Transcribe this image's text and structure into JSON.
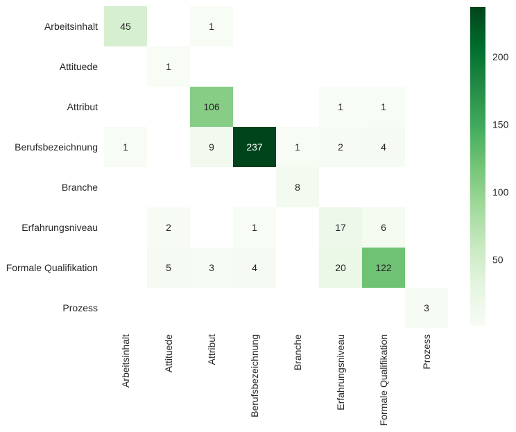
{
  "chart_data": {
    "type": "heatmap",
    "title": "",
    "xlabel": "",
    "ylabel": "",
    "row_labels": [
      "Arbeitsinhalt",
      "Attituede",
      "Attribut",
      "Berufsbezeichnung",
      "Branche",
      "Erfahrungsniveau",
      "Formale Qualifikation",
      "Prozess"
    ],
    "col_labels": [
      "Arbeitsinhalt",
      "Attituede",
      "Attribut",
      "Berufsbezeichnung",
      "Branche",
      "Erfahrungsniveau",
      "Formale Qualifikation",
      "Prozess"
    ],
    "values": [
      [
        45,
        null,
        1,
        null,
        null,
        null,
        null,
        null
      ],
      [
        null,
        1,
        null,
        null,
        null,
        null,
        null,
        null
      ],
      [
        null,
        null,
        106,
        null,
        null,
        1,
        1,
        null
      ],
      [
        1,
        null,
        9,
        237,
        1,
        2,
        4,
        null
      ],
      [
        null,
        null,
        null,
        null,
        8,
        null,
        null,
        null
      ],
      [
        null,
        2,
        null,
        1,
        null,
        17,
        6,
        null
      ],
      [
        null,
        5,
        3,
        4,
        null,
        20,
        122,
        null
      ],
      [
        null,
        null,
        null,
        null,
        null,
        null,
        null,
        3
      ]
    ],
    "colormap": "Greens",
    "vmin": 1,
    "vmax": 237,
    "colorbar": {
      "ticks": [
        50,
        100,
        150,
        200
      ]
    },
    "grid": false
  }
}
